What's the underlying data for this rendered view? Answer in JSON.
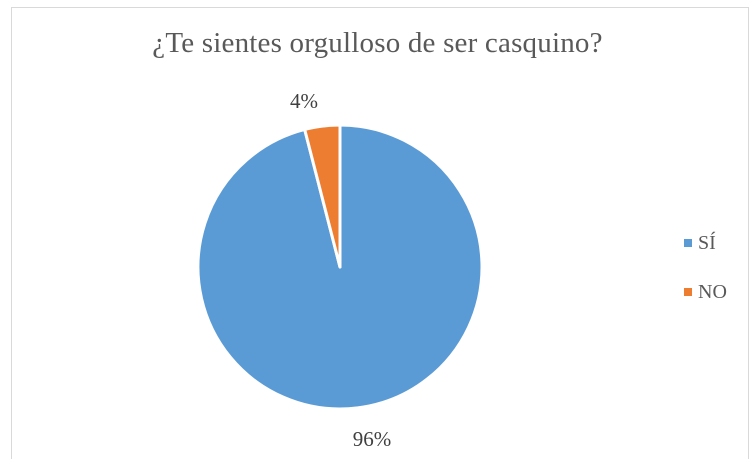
{
  "chart_data": {
    "type": "pie",
    "title": "¿Te sientes orgulloso de ser casquino?",
    "categories": [
      "SÍ",
      "NO"
    ],
    "values": [
      96,
      4
    ],
    "labels": [
      "96%",
      "4%"
    ],
    "colors": [
      "#5B9BD5",
      "#ED7D31"
    ],
    "legend": "right"
  }
}
